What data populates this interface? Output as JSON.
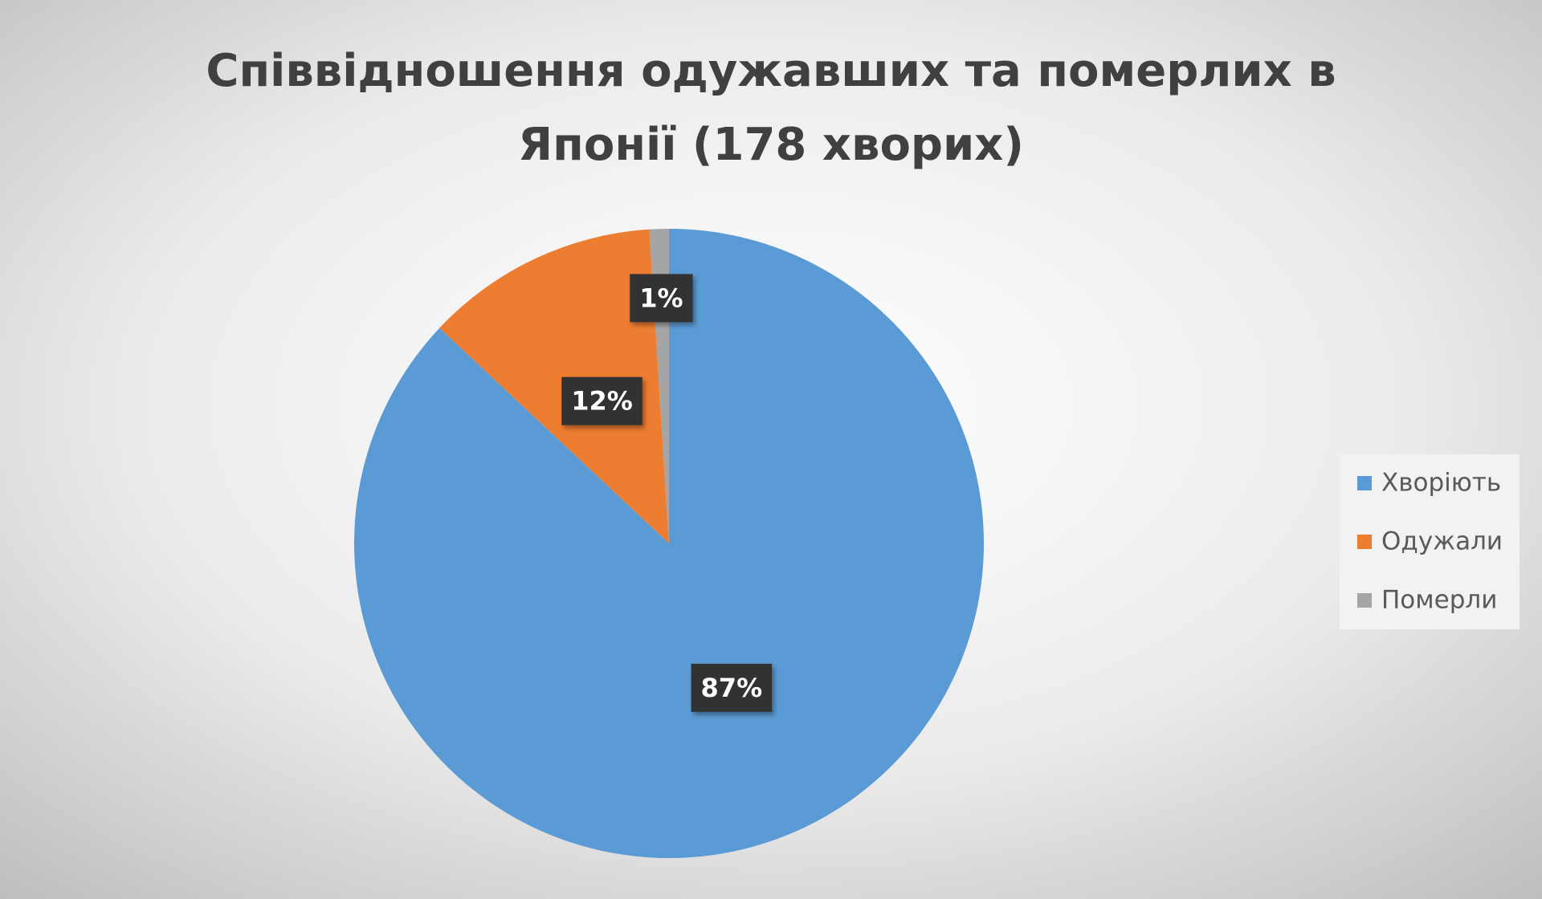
{
  "chart_data": {
    "type": "pie",
    "title": [
      "Співвідношення одужавших та померлих в",
      "Японії (178 хворих)"
    ],
    "categories": [
      "Хворіють",
      "Одужали",
      "Померли"
    ],
    "values": [
      87,
      12,
      1
    ],
    "value_labels": [
      "87%",
      "12%",
      "1%"
    ],
    "colors": [
      "#5b9bd5",
      "#ed7d31",
      "#a5a5a5"
    ],
    "legend": "right"
  }
}
